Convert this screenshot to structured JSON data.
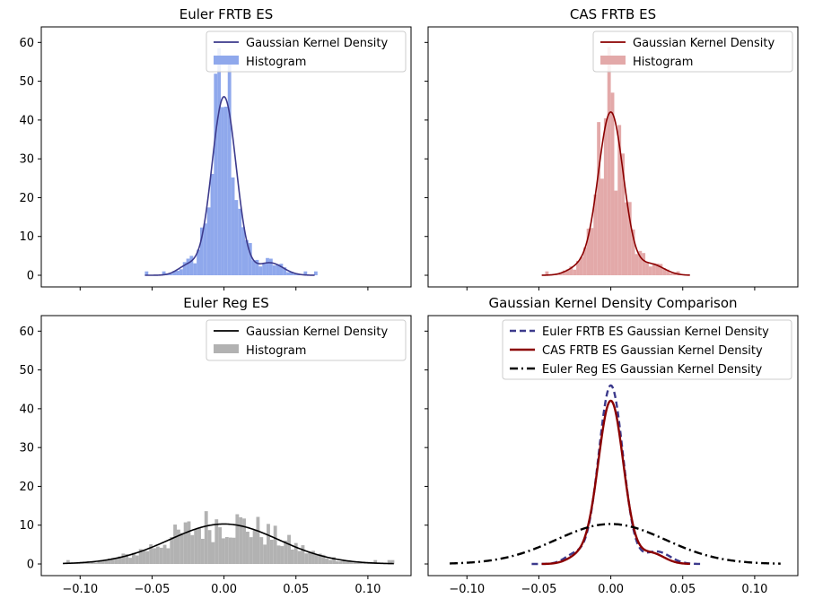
{
  "chart_data": [
    {
      "type": "histogram+kde",
      "title": "Euler FRTB ES",
      "color_hist": "#8fa8ec",
      "color_kde": "#3c3a8c",
      "kde_style": "solid",
      "xlim": [
        -0.127,
        0.13
      ],
      "ylim": [
        -3,
        64
      ],
      "xticks": [
        -0.1,
        -0.05,
        0.0,
        0.05,
        0.1
      ],
      "yticks": [
        0,
        10,
        20,
        30,
        40,
        50,
        60
      ],
      "show_xtick_labels": false,
      "show_ytick_labels": true,
      "legend": [
        "Gaussian Kernel Density",
        "Histogram"
      ],
      "kde": {
        "sigma": 0.0085,
        "peak": 46,
        "min_x": -0.055,
        "max_x": 0.063,
        "bumps": [
          {
            "mu": -0.025,
            "sigma": 0.007,
            "peak": 2.5
          },
          {
            "mu": 0.032,
            "sigma": 0.009,
            "peak": 3.2
          }
        ]
      }
    },
    {
      "type": "histogram+kde",
      "title": "CAS FRTB ES",
      "color_hist": "#e3a9a9",
      "color_kde": "#8b0000",
      "kde_style": "solid",
      "xlim": [
        -0.127,
        0.13
      ],
      "ylim": [
        -3,
        64
      ],
      "xticks": [
        -0.1,
        -0.05,
        0.0,
        0.05,
        0.1
      ],
      "yticks": [
        0,
        10,
        20,
        30,
        40,
        50,
        60
      ],
      "show_xtick_labels": false,
      "show_ytick_labels": false,
      "legend": [
        "Gaussian Kernel Density",
        "Histogram"
      ],
      "kde": {
        "sigma": 0.0088,
        "peak": 42,
        "min_x": -0.048,
        "max_x": 0.055,
        "bumps": [
          {
            "mu": -0.022,
            "sigma": 0.008,
            "peak": 2.0
          },
          {
            "mu": 0.028,
            "sigma": 0.009,
            "peak": 2.8
          }
        ]
      }
    },
    {
      "type": "histogram+kde",
      "title": "Euler Reg ES",
      "color_hist": "#b2b2b2",
      "color_kde": "#000000",
      "kde_style": "solid",
      "xlim": [
        -0.127,
        0.13
      ],
      "ylim": [
        -3,
        64
      ],
      "xticks": [
        -0.1,
        -0.05,
        0.0,
        0.05,
        0.1
      ],
      "xtick_labels": [
        "−0.10",
        "−0.05",
        "0.00",
        "0.05",
        "0.10"
      ],
      "yticks": [
        0,
        10,
        20,
        30,
        40,
        50,
        60
      ],
      "show_xtick_labels": true,
      "show_ytick_labels": true,
      "legend": [
        "Gaussian Kernel Density",
        "Histogram"
      ],
      "kde": {
        "sigma": 0.038,
        "peak": 10.3,
        "min_x": -0.112,
        "max_x": 0.118,
        "bumps": []
      }
    },
    {
      "type": "line",
      "title": "Gaussian Kernel Density Comparison",
      "xlim": [
        -0.127,
        0.13
      ],
      "ylim": [
        -3,
        64
      ],
      "xticks": [
        -0.1,
        -0.05,
        0.0,
        0.05,
        0.1
      ],
      "xtick_labels": [
        "−0.10",
        "−0.05",
        "0.00",
        "0.05",
        "0.10"
      ],
      "show_xtick_labels": true,
      "show_ytick_labels": false,
      "series": [
        {
          "name": "Euler FRTB ES Gaussian Kernel Density",
          "color": "#3c3a8c",
          "style": "dashed",
          "ref": 0
        },
        {
          "name": "CAS FRTB ES Gaussian Kernel Density",
          "color": "#8b0000",
          "style": "solid",
          "ref": 1
        },
        {
          "name": "Euler Reg ES Gaussian Kernel Density",
          "color": "#000000",
          "style": "dashdot",
          "ref": 2
        }
      ]
    }
  ]
}
